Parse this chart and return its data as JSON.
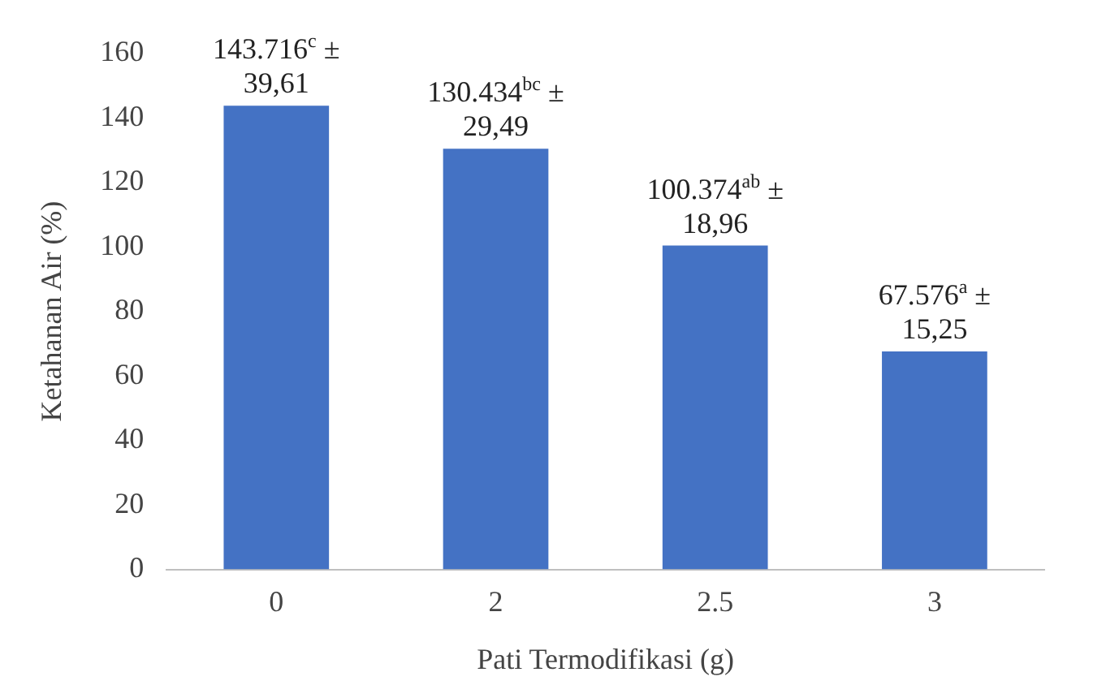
{
  "chart_data": {
    "type": "bar",
    "xlabel": "Pati Termodifikasi (g)",
    "ylabel": "Ketahanan Air (%)",
    "categories": [
      "0",
      "2",
      "2.5",
      "3"
    ],
    "values": [
      143.716,
      130.434,
      100.374,
      67.576
    ],
    "annotations": [
      {
        "text": "143.716$^{c}$ ± 39,61",
        "x": "0",
        "y": 143.716
      },
      {
        "text": "130.434$^{bc}$ ± 29,49",
        "x": "2",
        "y": 130.434
      },
      {
        "text": "100.374$^{ab}$ ± 18,96",
        "x": "2.5",
        "y": 100.374
      },
      {
        "text": "67.576$^{a}$ ± 15,25",
        "x": "3",
        "y": 67.576
      }
    ],
    "color": "#4472c4",
    "ylim": [
      0,
      160
    ],
    "yticks": [
      0,
      20,
      40,
      60,
      80,
      100,
      120,
      140,
      160
    ],
    "grid": false,
    "legend": false
  }
}
